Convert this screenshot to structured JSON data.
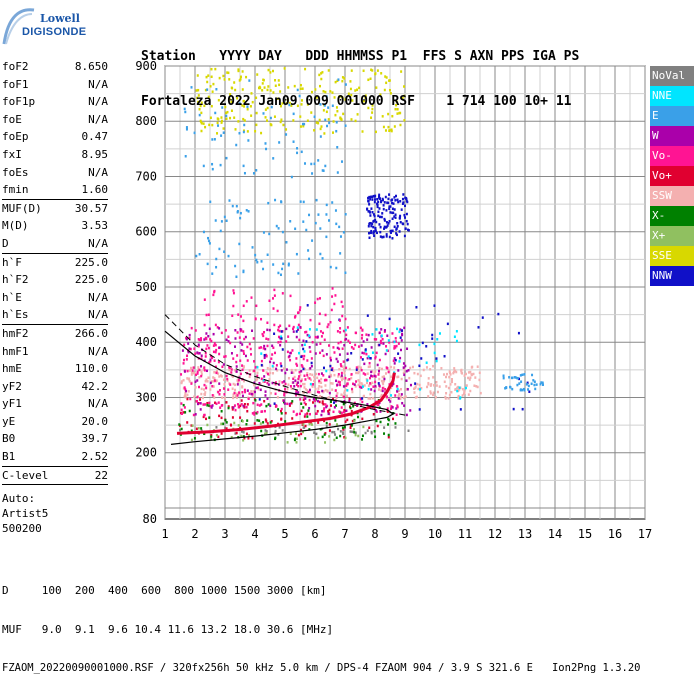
{
  "logo": {
    "brand_top": "Lowell",
    "brand_bottom": "DIGISONDE"
  },
  "header": {
    "line1": "Station   YYYY DAY   DDD HHMMSS P1  FFS S AXN PPS IGA PS",
    "line2": "Fortaleza 2022 Jan09 009 001000 RSF    1 714 100 10+ 11"
  },
  "params": [
    {
      "group": [
        {
          "k": "foF2",
          "v": "8.650"
        },
        {
          "k": "foF1",
          "v": "N/A"
        },
        {
          "k": "foF1p",
          "v": "N/A"
        },
        {
          "k": "foE",
          "v": "N/A"
        },
        {
          "k": "foEp",
          "v": "0.47"
        },
        {
          "k": "fxI",
          "v": "8.95"
        },
        {
          "k": "foEs",
          "v": "N/A"
        },
        {
          "k": "fmin",
          "v": "1.60"
        }
      ]
    },
    {
      "group": [
        {
          "k": "MUF(D)",
          "v": "30.57"
        },
        {
          "k": "M(D)",
          "v": "3.53"
        },
        {
          "k": "D",
          "v": "N/A"
        }
      ]
    },
    {
      "group": [
        {
          "k": "h`F",
          "v": "225.0"
        },
        {
          "k": "h`F2",
          "v": "225.0"
        },
        {
          "k": "h`E",
          "v": "N/A"
        },
        {
          "k": "h`Es",
          "v": "N/A"
        }
      ]
    },
    {
      "group": [
        {
          "k": "hmF2",
          "v": "266.0"
        },
        {
          "k": "hmF1",
          "v": "N/A"
        },
        {
          "k": "hmE",
          "v": "110.0"
        },
        {
          "k": "yF2",
          "v": "42.2"
        },
        {
          "k": "yF1",
          "v": "N/A"
        },
        {
          "k": "yE",
          "v": "20.0"
        },
        {
          "k": "B0",
          "v": "39.7"
        },
        {
          "k": "B1",
          "v": "2.52"
        }
      ]
    },
    {
      "group": [
        {
          "k": "C-level",
          "v": "22"
        }
      ]
    }
  ],
  "auto": {
    "line1": "Auto:",
    "line2": "Artist5",
    "line3": "500200"
  },
  "legend": [
    {
      "label": "NoVal",
      "color": "#808080"
    },
    {
      "label": "NNE",
      "color": "#00e5ff"
    },
    {
      "label": "E",
      "color": "#3aa0e8"
    },
    {
      "label": "W",
      "color": "#aa00aa"
    },
    {
      "label": "Vo-",
      "color": "#ff1493"
    },
    {
      "label": "Vo+",
      "color": "#e00030"
    },
    {
      "label": "SSW",
      "color": "#f4b0b0"
    },
    {
      "label": "X-",
      "color": "#008000"
    },
    {
      "label": "X+",
      "color": "#90c060"
    },
    {
      "label": "SSE",
      "color": "#d8d800"
    },
    {
      "label": "NNW",
      "color": "#1010c8"
    }
  ],
  "footer": {
    "line1": "D     100  200  400  600  800 1000 1500 3000 [km]",
    "line2": "MUF   9.0  9.1  9.6 10.4 11.6 13.2 18.0 30.6 [MHz]",
    "line3": "FZAOM_20220090001000.RSF / 320fx256h 50 kHz 5.0 km / DPS-4 FZAOM 904 / 3.9 S 321.6 E   Ion2Png 1.3.20"
  },
  "chart_data": {
    "type": "scatter",
    "title": "",
    "xlabel": "",
    "ylabel": "",
    "xlim": [
      1,
      17
    ],
    "ylim": [
      80,
      900
    ],
    "xticks": [
      1,
      2,
      3,
      4,
      5,
      6,
      7,
      8,
      9,
      10,
      11,
      12,
      13,
      14,
      15,
      16,
      17
    ],
    "yticks": [
      80,
      200,
      300,
      400,
      500,
      600,
      700,
      800,
      900
    ],
    "grid": true,
    "ordinary_trace": [
      [
        1.4,
        235
      ],
      [
        2.5,
        238
      ],
      [
        3.5,
        242
      ],
      [
        4.5,
        248
      ],
      [
        5.5,
        255
      ],
      [
        6.5,
        262
      ],
      [
        7.2,
        270
      ],
      [
        7.8,
        282
      ],
      [
        8.2,
        295
      ],
      [
        8.4,
        310
      ],
      [
        8.6,
        330
      ],
      [
        8.65,
        345
      ]
    ],
    "profile_curve": [
      [
        1.2,
        215
      ],
      [
        2.0,
        220
      ],
      [
        3.0,
        225
      ],
      [
        4.0,
        230
      ],
      [
        5.0,
        236
      ],
      [
        6.0,
        242
      ],
      [
        7.0,
        250
      ],
      [
        7.8,
        258
      ],
      [
        8.4,
        264
      ],
      [
        8.6,
        270
      ],
      [
        8.4,
        278
      ],
      [
        7.8,
        285
      ],
      [
        7.0,
        292
      ],
      [
        6.0,
        300
      ],
      [
        5.0,
        310
      ],
      [
        4.0,
        325
      ],
      [
        3.0,
        345
      ],
      [
        2.0,
        375
      ],
      [
        1.0,
        420
      ]
    ],
    "dashed_curve": [
      [
        1.0,
        450
      ],
      [
        2.0,
        395
      ],
      [
        3.0,
        360
      ],
      [
        4.0,
        338
      ],
      [
        5.0,
        320
      ],
      [
        6.0,
        304
      ],
      [
        7.0,
        290
      ],
      [
        8.0,
        278
      ],
      [
        9.0,
        268
      ]
    ],
    "clusters": [
      {
        "name": "NoVal",
        "x0": 1.3,
        "x1": 9.3,
        "y0": 235,
        "y1": 250,
        "n": 40
      },
      {
        "name": "Vo+",
        "x0": 1.4,
        "x1": 8.6,
        "y0": 228,
        "y1": 300,
        "n": 120
      },
      {
        "name": "X-",
        "x0": 1.4,
        "x1": 8.7,
        "y0": 225,
        "y1": 300,
        "n": 90
      },
      {
        "name": "X+",
        "x0": 1.4,
        "x1": 8.0,
        "y0": 220,
        "y1": 260,
        "n": 40
      },
      {
        "name": "SSW",
        "x0": 1.5,
        "x1": 11.5,
        "y0": 300,
        "y1": 360,
        "n": 420
      },
      {
        "name": "Vo-",
        "x0": 1.5,
        "x1": 8.8,
        "y0": 270,
        "y1": 430,
        "n": 420
      },
      {
        "name": "W",
        "x0": 1.5,
        "x1": 9.2,
        "y0": 270,
        "y1": 430,
        "n": 220
      },
      {
        "name": "NNE",
        "x0": 4.0,
        "x1": 11.0,
        "y0": 300,
        "y1": 430,
        "n": 50
      },
      {
        "name": "NNW",
        "x0": 4.0,
        "x1": 13.3,
        "y0": 280,
        "y1": 470,
        "n": 60
      },
      {
        "name": "E",
        "x0": 12.0,
        "x1": 13.6,
        "y0": 315,
        "y1": 345,
        "n": 40
      },
      {
        "name": "NNW",
        "x0": 7.7,
        "x1": 9.1,
        "y0": 590,
        "y1": 670,
        "n": 160
      },
      {
        "name": "E",
        "x0": 2.0,
        "x1": 7.0,
        "y0": 520,
        "y1": 660,
        "n": 90
      },
      {
        "name": "Vo-",
        "x0": 2.0,
        "x1": 7.0,
        "y0": 430,
        "y1": 500,
        "n": 60
      },
      {
        "name": "SSE",
        "x0": 2.0,
        "x1": 9.0,
        "y0": 780,
        "y1": 900,
        "n": 260
      },
      {
        "name": "E",
        "x0": 1.6,
        "x1": 7.0,
        "y0": 700,
        "y1": 880,
        "n": 80
      }
    ]
  }
}
